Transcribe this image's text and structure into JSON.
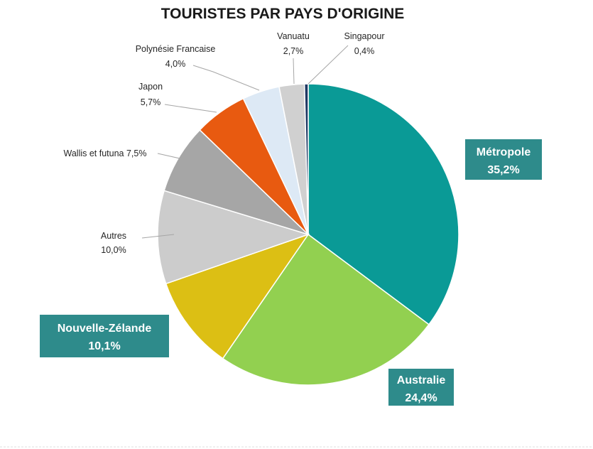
{
  "chart_data": {
    "type": "pie",
    "title": "TOURISTES PAR PAYS D'ORIGINE",
    "slices": [
      {
        "name": "Métropole",
        "label": "Métropole",
        "value_label": "35,2%",
        "value": 35.2,
        "color": "#0a9a96",
        "boxed": true
      },
      {
        "name": "Australie",
        "label": "Australie",
        "value_label": "24,4%",
        "value": 24.4,
        "color": "#92d050",
        "boxed": true
      },
      {
        "name": "Nouvelle-Zélande",
        "label": "Nouvelle-Zélande",
        "value_label": "10,1%",
        "value": 10.1,
        "color": "#dcbf14",
        "boxed": true
      },
      {
        "name": "Autres",
        "label": "Autres",
        "value_label": "10,0%",
        "value": 10.0,
        "color": "#cccccc",
        "boxed": false
      },
      {
        "name": "Wallis et futuna",
        "label": "Wallis et futuna 7,5%",
        "value_label": "",
        "value": 7.5,
        "color": "#a6a6a6",
        "boxed": false
      },
      {
        "name": "Japon",
        "label": "Japon",
        "value_label": "5,7%",
        "value": 5.7,
        "color": "#e85a10",
        "boxed": false
      },
      {
        "name": "Polynésie Francaise",
        "label": "Polynésie Francaise",
        "value_label": "4,0%",
        "value": 4.0,
        "color": "#dde9f5",
        "boxed": false
      },
      {
        "name": "Vanuatu",
        "label": "Vanuatu",
        "value_label": "2,7%",
        "value": 2.7,
        "color": "#d0d0d0",
        "boxed": false
      },
      {
        "name": "Singapour",
        "label": "Singapour",
        "value_label": "0,4%",
        "value": 0.4,
        "color": "#1f3864",
        "boxed": false
      }
    ],
    "start_angle_deg": 0,
    "direction": "clockwise"
  }
}
